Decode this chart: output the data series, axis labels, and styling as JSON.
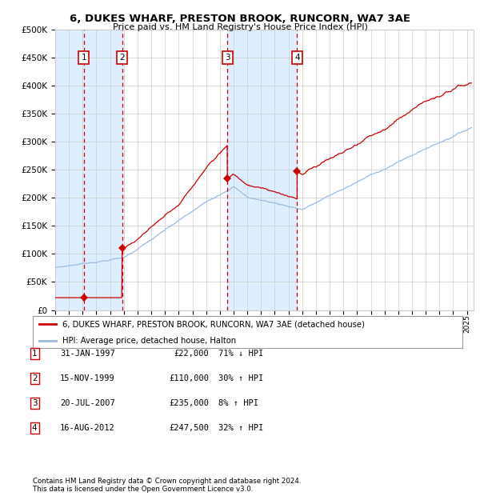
{
  "title": "6, DUKES WHARF, PRESTON BROOK, RUNCORN, WA7 3AE",
  "subtitle": "Price paid vs. HM Land Registry's House Price Index (HPI)",
  "legend_label_red": "6, DUKES WHARF, PRESTON BROOK, RUNCORN, WA7 3AE (detached house)",
  "legend_label_blue": "HPI: Average price, detached house, Halton",
  "footer1": "Contains HM Land Registry data © Crown copyright and database right 2024.",
  "footer2": "This data is licensed under the Open Government Licence v3.0.",
  "transactions": [
    {
      "num": 1,
      "date": "31-JAN-1997",
      "price": 22000,
      "pct": "71%",
      "dir": "↓",
      "year_x": 1997.08
    },
    {
      "num": 2,
      "date": "15-NOV-1999",
      "price": 110000,
      "pct": "30%",
      "dir": "↑",
      "year_x": 1999.88
    },
    {
      "num": 3,
      "date": "20-JUL-2007",
      "price": 235000,
      "pct": "8%",
      "dir": "↑",
      "year_x": 2007.55
    },
    {
      "num": 4,
      "date": "16-AUG-2012",
      "price": 247500,
      "pct": "32%",
      "dir": "↑",
      "year_x": 2012.63
    }
  ],
  "background_color": "#ffffff",
  "grid_color": "#cccccc",
  "red_color": "#cc0000",
  "blue_color": "#99bbdd",
  "shade_color": "#ddeeff",
  "ylim": [
    0,
    500000
  ],
  "xlim": [
    1995.0,
    2025.5
  ],
  "yticks": [
    0,
    50000,
    100000,
    150000,
    200000,
    250000,
    300000,
    350000,
    400000,
    450000,
    500000
  ],
  "xticks": [
    1995,
    1996,
    1997,
    1998,
    1999,
    2000,
    2001,
    2002,
    2003,
    2004,
    2005,
    2006,
    2007,
    2008,
    2009,
    2010,
    2011,
    2012,
    2013,
    2014,
    2015,
    2016,
    2017,
    2018,
    2019,
    2020,
    2021,
    2022,
    2023,
    2024,
    2025
  ]
}
